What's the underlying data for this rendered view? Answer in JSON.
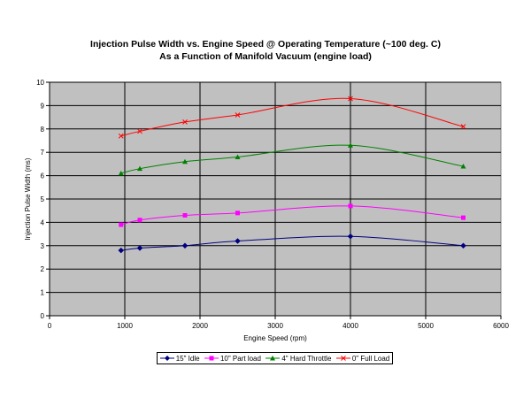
{
  "chart_data": {
    "type": "line",
    "title": "Injection Pulse Width vs. Engine Speed @ Operating Temperature (~100 deg. C)",
    "subtitle": "As a Function of Manifold Vacuum (engine load)",
    "xlabel": "Engine Speed (rpm)",
    "ylabel": "Injection Pulse Width (ms)",
    "xlim": [
      0,
      6000
    ],
    "ylim": [
      0,
      10
    ],
    "xticks": [
      0,
      1000,
      2000,
      3000,
      4000,
      5000,
      6000
    ],
    "yticks": [
      0,
      1,
      2,
      3,
      4,
      5,
      6,
      7,
      8,
      9,
      10
    ],
    "grid": true,
    "legend_position": "bottom",
    "plot_background": "#c0c0c0",
    "series": [
      {
        "name": "15\" Idle",
        "color": "#000080",
        "marker": "diamond",
        "x": [
          950,
          1200,
          1800,
          2500,
          4000,
          5500
        ],
        "y": [
          2.8,
          2.9,
          3.0,
          3.2,
          3.4,
          3.0
        ]
      },
      {
        "name": "10\" Part load",
        "color": "#ff00ff",
        "marker": "square",
        "x": [
          950,
          1200,
          1800,
          2500,
          4000,
          5500
        ],
        "y": [
          3.9,
          4.1,
          4.3,
          4.4,
          4.7,
          4.2
        ]
      },
      {
        "name": "4\" Hard Throttle",
        "color": "#008000",
        "marker": "triangle",
        "x": [
          950,
          1200,
          1800,
          2500,
          4000,
          5500
        ],
        "y": [
          6.1,
          6.3,
          6.6,
          6.8,
          7.3,
          6.4
        ]
      },
      {
        "name": "0\" Full Load",
        "color": "#ff0000",
        "marker": "x",
        "x": [
          950,
          1200,
          1800,
          2500,
          4000,
          5500
        ],
        "y": [
          7.7,
          7.9,
          8.3,
          8.6,
          9.3,
          8.1
        ]
      }
    ]
  }
}
